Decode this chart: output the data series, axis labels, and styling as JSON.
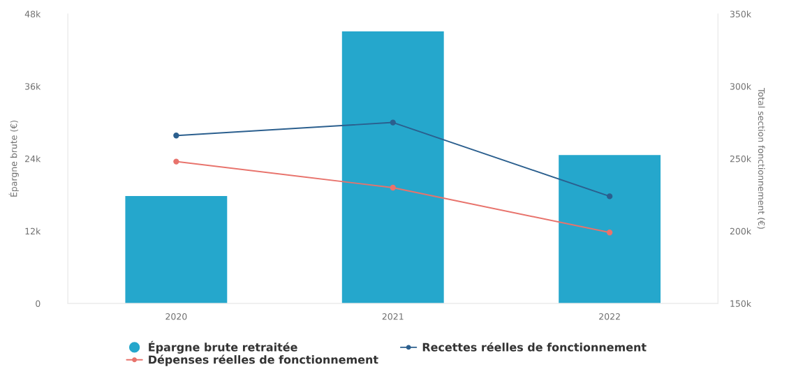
{
  "chart_data": {
    "type": "bar",
    "categories": [
      "2020",
      "2021",
      "2022"
    ],
    "series": [
      {
        "name": "Épargne brute retraitée",
        "color": "#25a7cc",
        "values": [
          17800,
          45100,
          24600
        ]
      },
      {
        "name": "Recettes réelles de fonctionnement",
        "type": "line",
        "axis": "y2",
        "color": "#2b5f8e",
        "values": [
          266000,
          275000,
          224000
        ]
      },
      {
        "name": "Dépenses réelles de fonctionnement",
        "type": "line",
        "axis": "y2",
        "color": "#e8736c",
        "values": [
          248000,
          230000,
          199000
        ]
      }
    ],
    "ylabel": "Épargne brute (€)",
    "y2label": "Total section fonctionnement (€)",
    "ylim": [
      0,
      48000
    ],
    "yticks": [
      {
        "value": 0,
        "label": "0"
      },
      {
        "value": 12000,
        "label": "12k"
      },
      {
        "value": 24000,
        "label": "24k"
      },
      {
        "value": 36000,
        "label": "36k"
      },
      {
        "value": 48000,
        "label": "48k"
      }
    ],
    "y2lim": [
      150000,
      350000
    ],
    "y2ticks": [
      {
        "value": 150000,
        "label": "150k"
      },
      {
        "value": 200000,
        "label": "200k"
      },
      {
        "value": 250000,
        "label": "250k"
      },
      {
        "value": 300000,
        "label": "300k"
      },
      {
        "value": 350000,
        "label": "350k"
      }
    ],
    "legend": "bottom",
    "marker": "circle",
    "line_style": "solid"
  }
}
